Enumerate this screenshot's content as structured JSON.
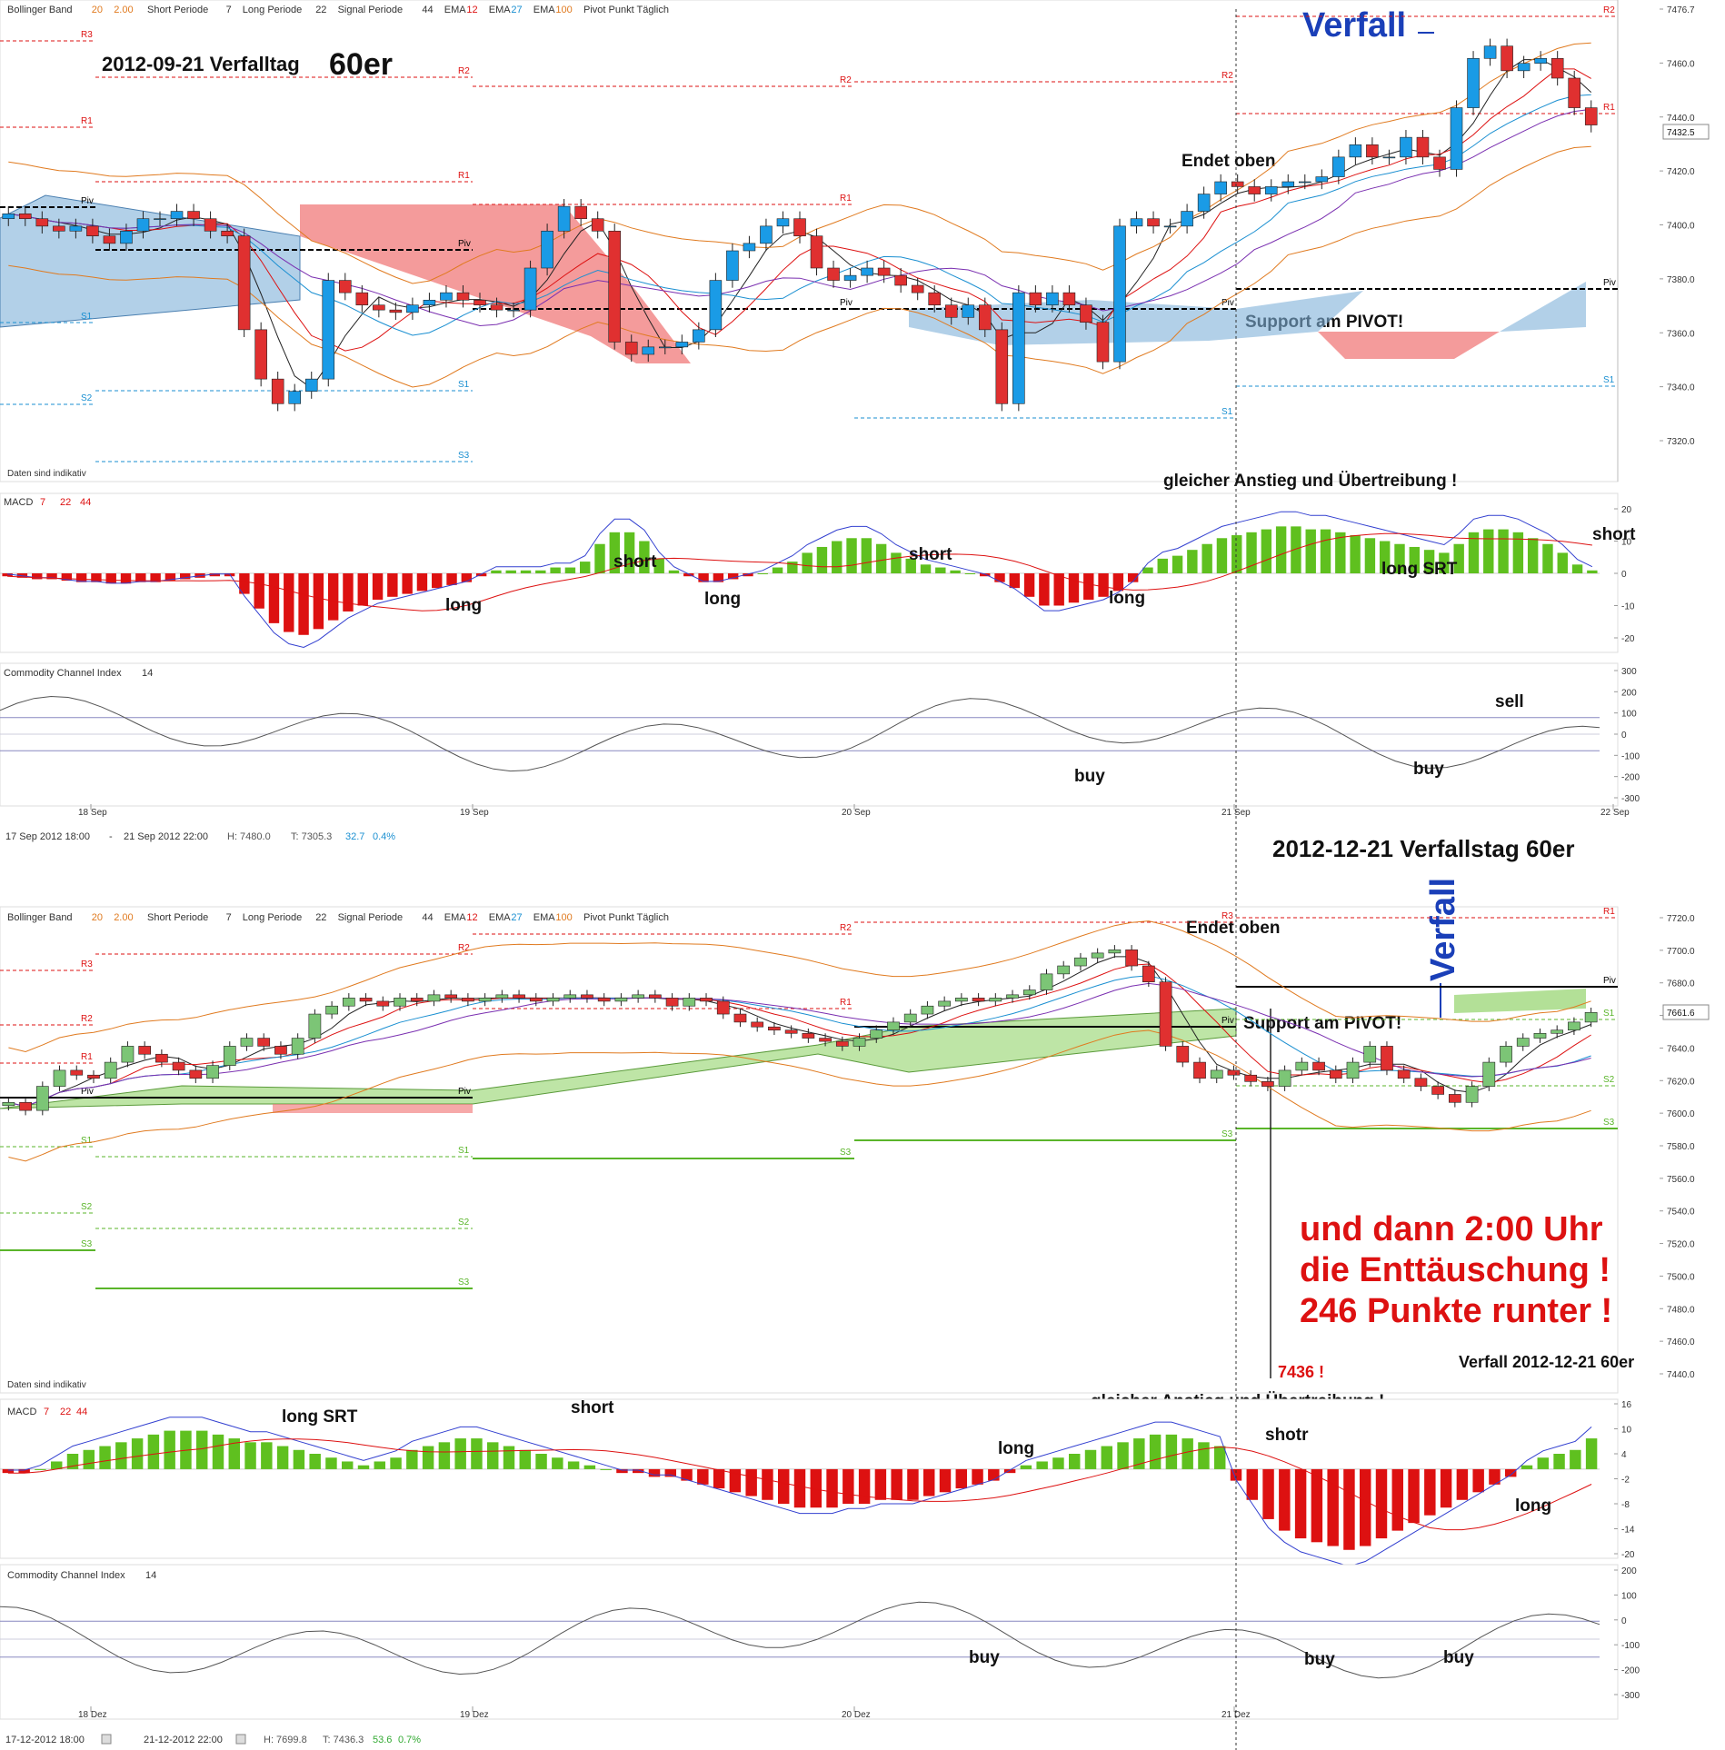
{
  "top": {
    "header": {
      "items": [
        "Bollinger Band",
        "20",
        "2.00",
        "Short Periode",
        "7",
        "Long Periode",
        "22",
        "Signal Periode",
        "44",
        "EMA",
        "12",
        "EMA",
        "27",
        "EMA",
        "100",
        "Pivot Punkt Täglich"
      ]
    },
    "title": "2012-09-21 Verfalltag",
    "title_suffix": "60er",
    "annotations": {
      "verfall": "Verfall",
      "endet_oben": "Endet oben",
      "support": "Support am PIVOT!",
      "gleicher": "gleicher Anstieg und Übertreibung !",
      "daten": "Daten sind indikativ"
    },
    "price_axis": [
      "7476.7",
      "7460.0",
      "7440.0",
      "7420.0",
      "7400.0",
      "7380.0",
      "7360.0",
      "7340.0",
      "7320.0"
    ],
    "last_price": "7432.5",
    "macd": {
      "label": "MACD",
      "params": [
        "7",
        "22",
        "44"
      ],
      "axis": [
        "20",
        "10",
        "0",
        "-10",
        "-20"
      ],
      "signals": [
        "long",
        "short",
        "long",
        "short",
        "long",
        "long SRT",
        "short"
      ],
      "histogram": [
        -1,
        -1.5,
        -2,
        -2,
        -2.5,
        -3,
        -3,
        -3.5,
        -3.5,
        -3,
        -3,
        -2.5,
        -2,
        -1.5,
        -1,
        -1,
        -7,
        -12,
        -17,
        -20,
        -21,
        -19,
        -16,
        -13,
        -11,
        -9,
        -8,
        -7,
        -6,
        -5,
        -4,
        -3,
        -1,
        1,
        1,
        1,
        1,
        2,
        2,
        4,
        10,
        14,
        14,
        11,
        5,
        1,
        -1,
        -3,
        -3,
        -2,
        -1,
        0,
        2,
        4,
        7,
        9,
        11,
        12,
        12,
        10,
        7,
        5,
        3,
        2,
        1,
        0,
        -1,
        -3,
        -5,
        -8,
        -11,
        -11,
        -10,
        -9,
        -8,
        -6,
        -3,
        2,
        5,
        6,
        8,
        10,
        12,
        13,
        14,
        15,
        16,
        16,
        15,
        15,
        14,
        13,
        12,
        11,
        10,
        9,
        8,
        7,
        10,
        14,
        15,
        15,
        14,
        12,
        10,
        7,
        3,
        1
      ]
    },
    "cci": {
      "label": "Commodity Channel Index",
      "param": "14",
      "axis": [
        "300",
        "200",
        "100",
        "0",
        "-100",
        "-200",
        "-300"
      ],
      "signals": [
        "buy",
        "buy",
        "sell"
      ]
    },
    "dates": [
      "18 Sep",
      "19 Sep",
      "20 Sep",
      "21 Sep",
      "22 Sep"
    ],
    "footer": {
      "range": "17 Sep 2012 18:00",
      "sep": "-",
      "range_end": "21 Sep 2012 22:00",
      "hl": "H: 7480.0",
      "t": "T: 7305.3",
      "chg": "32.7",
      "pct": "0.4%"
    }
  },
  "bottom": {
    "title": "2012-12-21 Verfallstag 60er",
    "header": {
      "items": [
        "Bollinger Band",
        "20",
        "2.00",
        "Short Periode",
        "7",
        "Long Periode",
        "22",
        "Signal Periode",
        "44",
        "EMA",
        "12",
        "EMA",
        "27",
        "EMA",
        "100",
        "Pivot Punkt Täglich"
      ]
    },
    "annotations": {
      "verfall": "Verfall",
      "endet_oben": "Endet oben",
      "support": "Support am PIVOT!",
      "gleicher": "gleicher Anstieg und Übertreibung !",
      "daten": "Daten sind indikativ",
      "enttaeuschung_1": "und dann 2:00 Uhr",
      "enttaeuschung_2": "die Enttäuschung !",
      "enttaeuschung_3": "246 Punkte runter !",
      "low": "7436 !",
      "verfall_caption": "Verfall 2012-12-21 60er"
    },
    "price_axis": [
      "7720.0",
      "7700.0",
      "7680.0",
      "7661.6",
      "7640.0",
      "7620.0",
      "7600.0",
      "7580.0",
      "7560.0",
      "7540.0",
      "7520.0",
      "7500.0",
      "7480.0",
      "7460.0",
      "7440.0"
    ],
    "last_price": "7661.6",
    "macd": {
      "label": "MACD",
      "params": [
        "7",
        "22",
        "44"
      ],
      "axis": [
        "16",
        "10",
        "4",
        "-2",
        "-8",
        "-14",
        "-20"
      ],
      "signals": [
        "long SRT",
        "short",
        "long",
        "shotr",
        "long"
      ],
      "histogram": [
        -1,
        -1,
        0,
        2,
        4,
        5,
        6,
        7,
        8,
        9,
        10,
        10,
        10,
        9,
        8,
        7,
        7,
        6,
        5,
        4,
        3,
        2,
        1,
        2,
        3,
        5,
        6,
        7,
        8,
        8,
        7,
        6,
        5,
        4,
        3,
        2,
        1,
        0,
        -1,
        -1,
        -2,
        -2,
        -3,
        -4,
        -5,
        -6,
        -7,
        -8,
        -9,
        -10,
        -10,
        -10,
        -9,
        -9,
        -8,
        -8,
        -8,
        -7,
        -6,
        -5,
        -4,
        -3,
        -1,
        1,
        2,
        3,
        4,
        5,
        6,
        7,
        8,
        9,
        9,
        8,
        7,
        6,
        -3,
        -8,
        -13,
        -16,
        -18,
        -19,
        -20,
        -21,
        -20,
        -18,
        -16,
        -14,
        -12,
        -10,
        -8,
        -6,
        -4,
        -2,
        1,
        3,
        4,
        5,
        8
      ]
    },
    "cci": {
      "label": "Commodity Channel Index",
      "param": "14",
      "axis": [
        "200",
        "100",
        "0",
        "-100",
        "-200",
        "-300"
      ],
      "signals": [
        "buy",
        "buy",
        "buy"
      ]
    },
    "dates": [
      "18 Dez",
      "19 Dez",
      "20 Dez",
      "21 Dez"
    ],
    "footer": {
      "range": "17-12-2012 18:00",
      "range_end": "21-12-2012 22:00",
      "hl": "H: 7699.8",
      "t": "T: 7436.3",
      "chg": "53.6",
      "pct": "0.7%"
    }
  },
  "chart_data": [
    {
      "type": "candlestick",
      "title": "2012-09-21 Verfalltag 60er",
      "ylim": [
        7305,
        7480
      ],
      "x_labels": [
        "18 Sep",
        "19 Sep",
        "20 Sep",
        "21 Sep",
        "22 Sep"
      ],
      "close": [
        7397,
        7395,
        7392,
        7390,
        7392,
        7388,
        7385,
        7390,
        7395,
        7395,
        7398,
        7395,
        7390,
        7388,
        7350,
        7330,
        7320,
        7325,
        7330,
        7370,
        7365,
        7360,
        7358,
        7357,
        7360,
        7362,
        7365,
        7362,
        7360,
        7358,
        7358,
        7375,
        7390,
        7400,
        7395,
        7390,
        7345,
        7340,
        7343,
        7343,
        7345,
        7350,
        7370,
        7382,
        7385,
        7392,
        7395,
        7388,
        7375,
        7370,
        7372,
        7375,
        7372,
        7368,
        7365,
        7360,
        7355,
        7360,
        7350,
        7320,
        7365,
        7360,
        7365,
        7360,
        7353,
        7337,
        7392,
        7395,
        7392,
        7392,
        7398,
        7405,
        7410,
        7408,
        7405,
        7408,
        7410,
        7410,
        7412,
        7420,
        7425,
        7420,
        7420,
        7428,
        7420,
        7415,
        7440,
        7460,
        7465,
        7455,
        7458,
        7460,
        7452,
        7440,
        7433
      ]
    },
    {
      "type": "candlestick",
      "title": "2012-12-21 Verfallstag 60er",
      "ylim": [
        7436,
        7720
      ],
      "x_labels": [
        "18 Dez",
        "19 Dez",
        "20 Dez",
        "21 Dez"
      ],
      "close": [
        7605,
        7600,
        7615,
        7625,
        7622,
        7620,
        7630,
        7640,
        7635,
        7630,
        7625,
        7620,
        7628,
        7640,
        7645,
        7640,
        7635,
        7645,
        7660,
        7665,
        7670,
        7668,
        7665,
        7670,
        7668,
        7672,
        7670,
        7668,
        7670,
        7672,
        7670,
        7668,
        7670,
        7672,
        7670,
        7668,
        7670,
        7672,
        7670,
        7665,
        7670,
        7668,
        7660,
        7655,
        7652,
        7650,
        7648,
        7645,
        7643,
        7640,
        7645,
        7650,
        7655,
        7660,
        7665,
        7668,
        7670,
        7668,
        7670,
        7672,
        7675,
        7685,
        7690,
        7695,
        7698,
        7700,
        7690,
        7680,
        7640,
        7630,
        7620,
        7625,
        7622,
        7618,
        7615,
        7625,
        7630,
        7625,
        7620,
        7630,
        7640,
        7625,
        7620,
        7615,
        7610,
        7605,
        7615,
        7630,
        7640,
        7645,
        7648,
        7650,
        7655,
        7661
      ]
    }
  ]
}
